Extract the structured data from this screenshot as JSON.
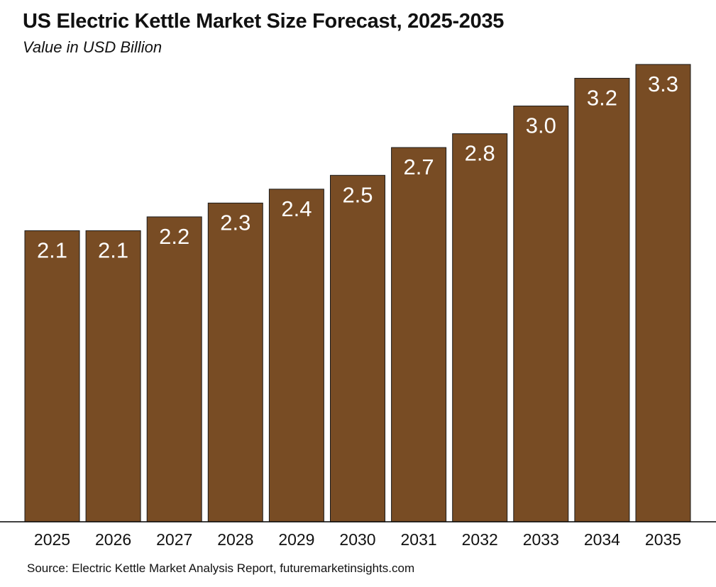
{
  "chart_data": {
    "type": "bar",
    "title": "US Electric Kettle Market Size Forecast, 2025-2035",
    "subtitle": "Value in USD Billion",
    "categories": [
      "2025",
      "2026",
      "2027",
      "2028",
      "2029",
      "2030",
      "2031",
      "2032",
      "2033",
      "2034",
      "2035"
    ],
    "values": [
      2.1,
      2.1,
      2.2,
      2.3,
      2.4,
      2.5,
      2.7,
      2.8,
      3.0,
      3.2,
      3.3
    ],
    "value_labels": [
      "2.1",
      "2.1",
      "2.2",
      "2.3",
      "2.4",
      "2.5",
      "2.7",
      "2.8",
      "3.0",
      "3.2",
      "3.3"
    ],
    "xlabel": "",
    "ylabel": "",
    "ylim": [
      0,
      3.3
    ],
    "grid": false,
    "legend": "none",
    "bar_color": "#784c24",
    "label_color": "#ffffff"
  },
  "source": "Source: Electric Kettle Market Analysis Report, futuremarketinsights.com"
}
